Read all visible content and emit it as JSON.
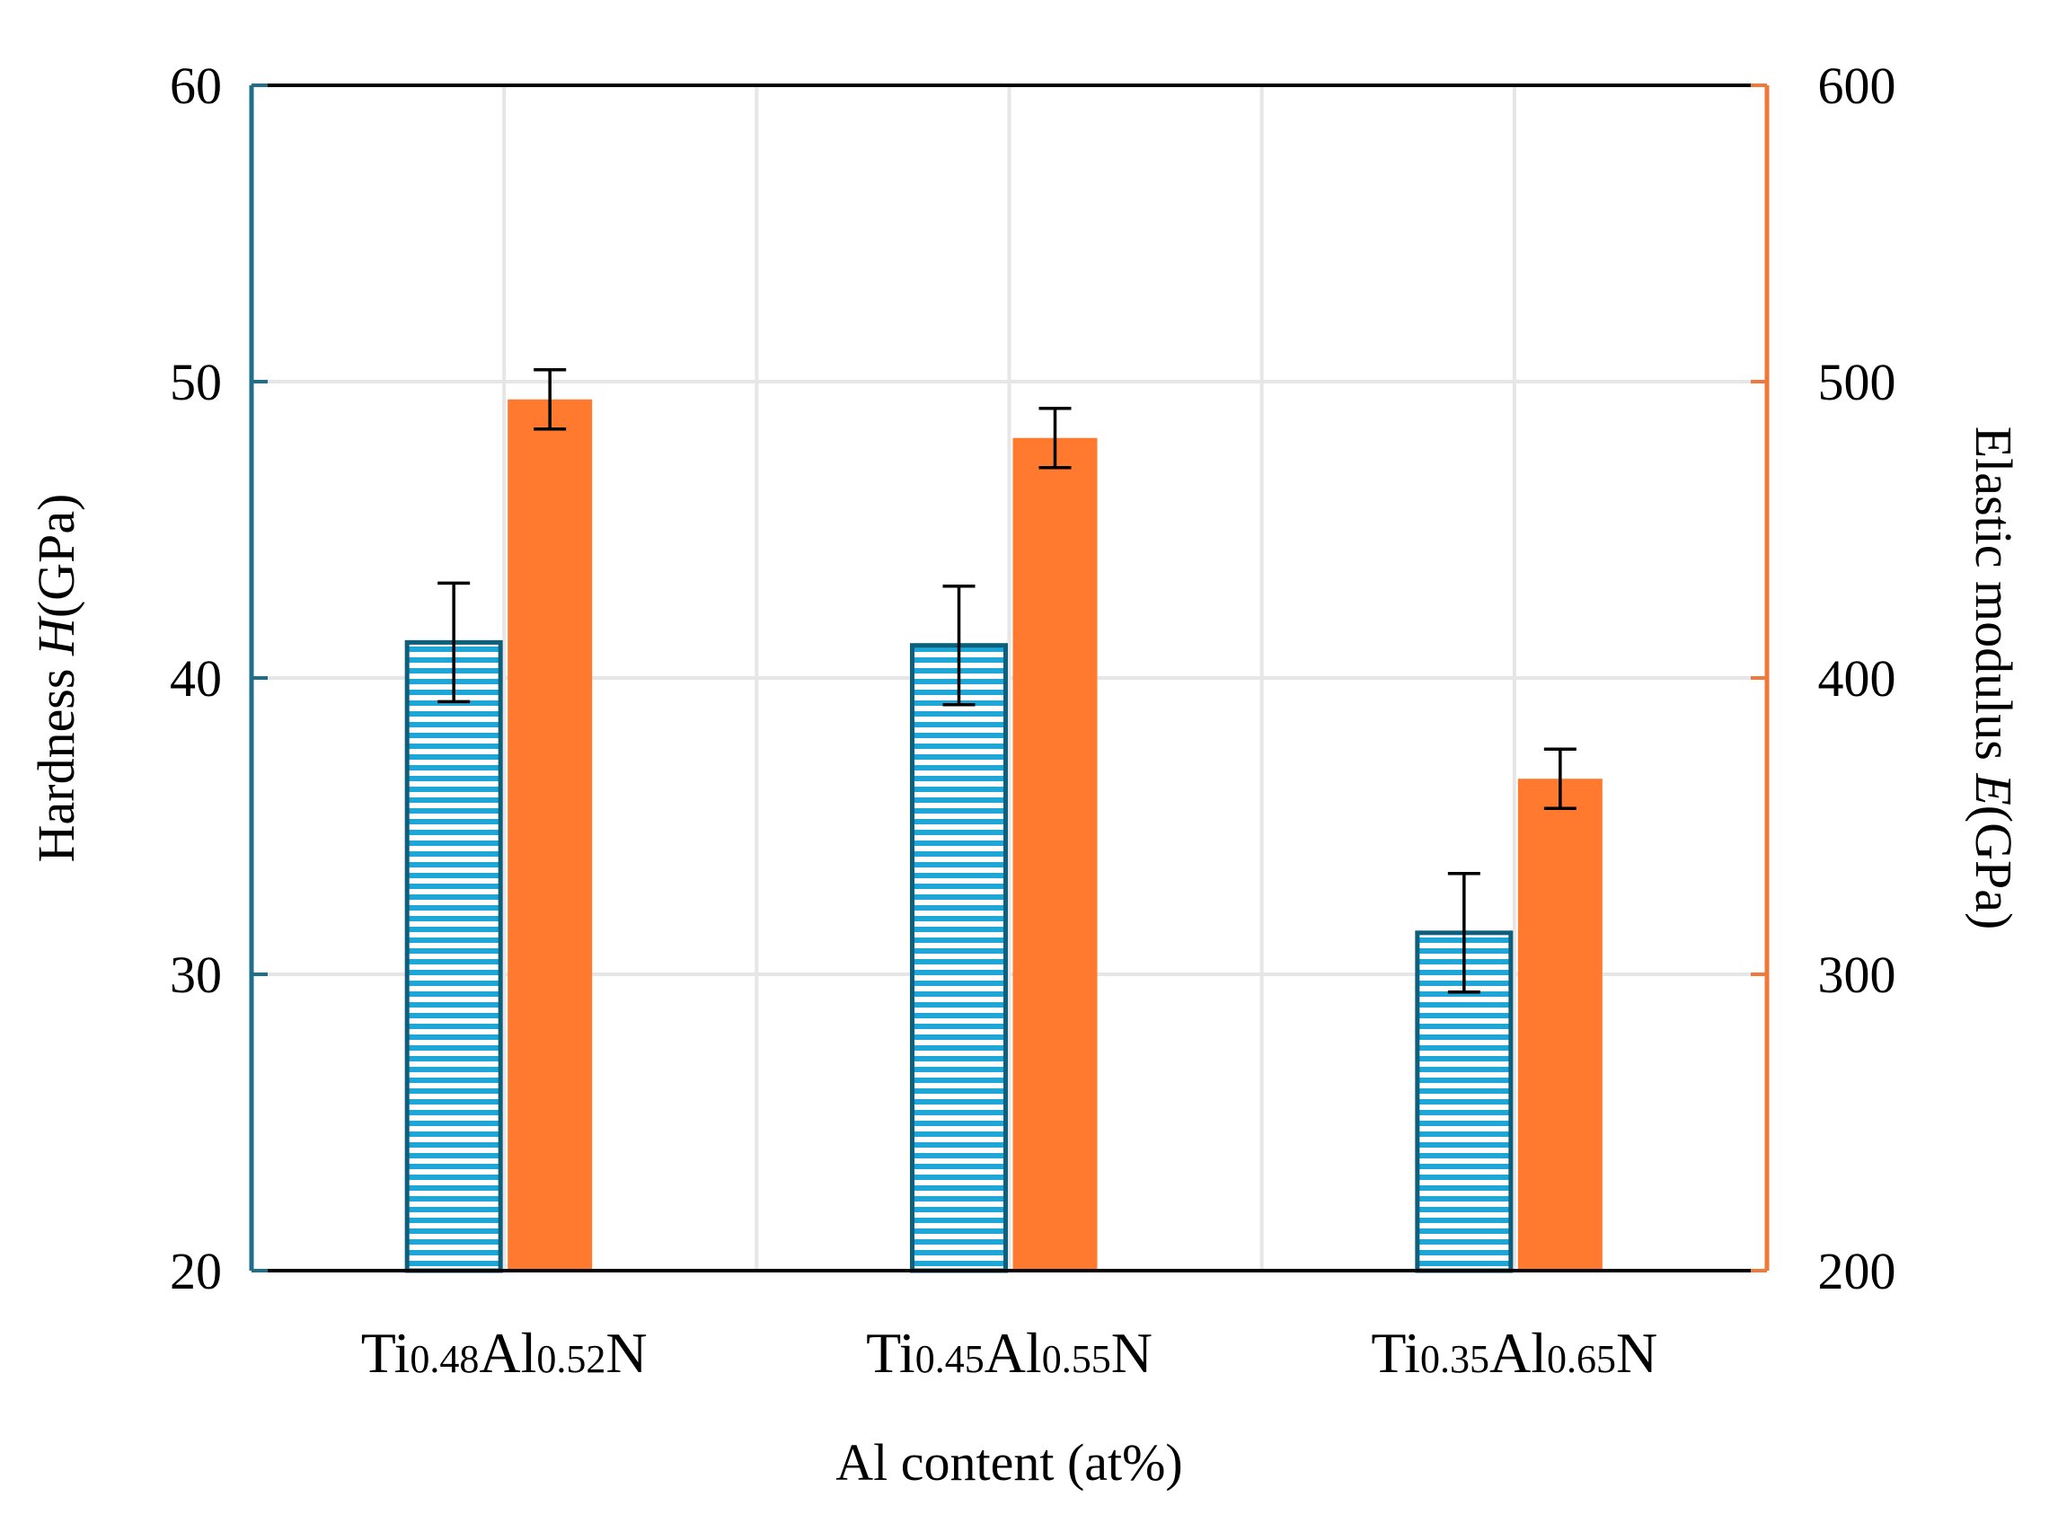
{
  "chart_data": {
    "type": "bar",
    "title": "",
    "xlabel": "Al content (at%)",
    "ylabel_left": {
      "prefix": "Hardness ",
      "italic": "H",
      "suffix": "(GPa)"
    },
    "ylabel_right": {
      "prefix": "Elastic modulus ",
      "italic": "E",
      "suffix": "(GPa)"
    },
    "ylim_left": [
      20,
      60
    ],
    "ylim_right": [
      200,
      600
    ],
    "yticks_left": [
      "20",
      "30",
      "40",
      "50",
      "60"
    ],
    "yticks_right": [
      "200",
      "300",
      "400",
      "500",
      "600"
    ],
    "grid": true,
    "categories": [
      {
        "parts": [
          {
            "t": "Ti",
            "sub": false
          },
          {
            "t": "0.48",
            "sub": true
          },
          {
            "t": "Al",
            "sub": false
          },
          {
            "t": "0.52",
            "sub": true
          },
          {
            "t": "N",
            "sub": false
          }
        ]
      },
      {
        "parts": [
          {
            "t": "Ti",
            "sub": false
          },
          {
            "t": "0.45",
            "sub": true
          },
          {
            "t": "Al",
            "sub": false
          },
          {
            "t": "0.55",
            "sub": true
          },
          {
            "t": "N",
            "sub": false
          }
        ]
      },
      {
        "parts": [
          {
            "t": "Ti",
            "sub": false
          },
          {
            "t": "0.35",
            "sub": true
          },
          {
            "t": "Al",
            "sub": false
          },
          {
            "t": "0.65",
            "sub": true
          },
          {
            "t": "N",
            "sub": false
          }
        ]
      }
    ],
    "series": [
      {
        "axis": "left",
        "values": [
          41.2,
          41.1,
          31.4
        ],
        "errors": [
          2.0,
          2.0,
          2.0
        ],
        "color": "#1ea7d6",
        "edge": "#0d5f7e",
        "hatch": true
      },
      {
        "axis": "right",
        "values": [
          494,
          481,
          366
        ],
        "errors": [
          10,
          10,
          10
        ],
        "color": "#ff7a2f",
        "hatch": false
      }
    ],
    "colors": {
      "left_axis": "#1f6e8c",
      "right_axis": "#f0793a",
      "grid": "#e6e6e6"
    }
  }
}
